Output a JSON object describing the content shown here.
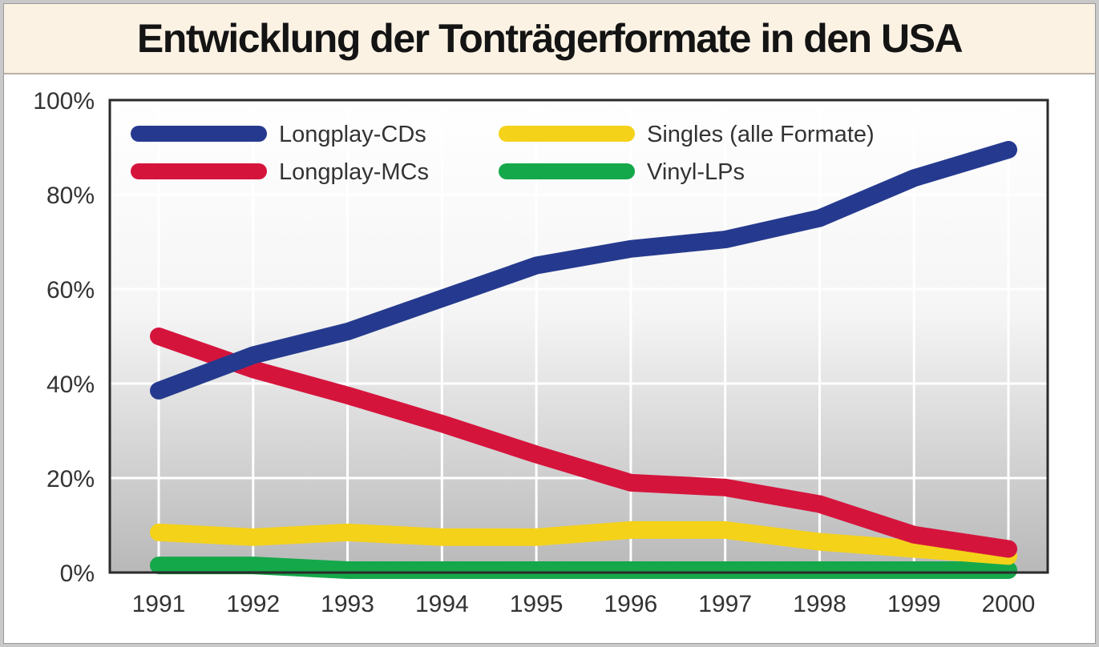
{
  "chart_data": {
    "type": "line",
    "title": "Entwicklung der Tonträgerformate in den USA",
    "xlabel": "",
    "ylabel": "",
    "categories": [
      "1991",
      "1992",
      "1993",
      "1994",
      "1995",
      "1996",
      "1997",
      "1998",
      "1999",
      "2000"
    ],
    "yticks": [
      "0%",
      "20%",
      "40%",
      "60%",
      "80%",
      "100%"
    ],
    "ylim": [
      0,
      100
    ],
    "grid": true,
    "legend_position": "top",
    "series": [
      {
        "name": "Longplay-CDs",
        "color": "#253a8e",
        "values": [
          38.5,
          46,
          51,
          58,
          65,
          68.5,
          70.5,
          75,
          83.5,
          89.5
        ]
      },
      {
        "name": "Longplay-MCs",
        "color": "#d5143c",
        "values": [
          50,
          43,
          37.5,
          31.5,
          25,
          19,
          18,
          14.5,
          8,
          5
        ]
      },
      {
        "name": "Singles (alle Formate)",
        "color": "#f4d21a",
        "values": [
          8.5,
          7.5,
          8.5,
          7.5,
          7.5,
          9,
          9,
          6.5,
          5,
          3.5
        ]
      },
      {
        "name": "Vinyl-LPs",
        "color": "#15a84a",
        "values": [
          1.5,
          1.5,
          0.5,
          0.5,
          0.5,
          0.5,
          0.5,
          0.5,
          0.5,
          0.5
        ]
      }
    ]
  }
}
